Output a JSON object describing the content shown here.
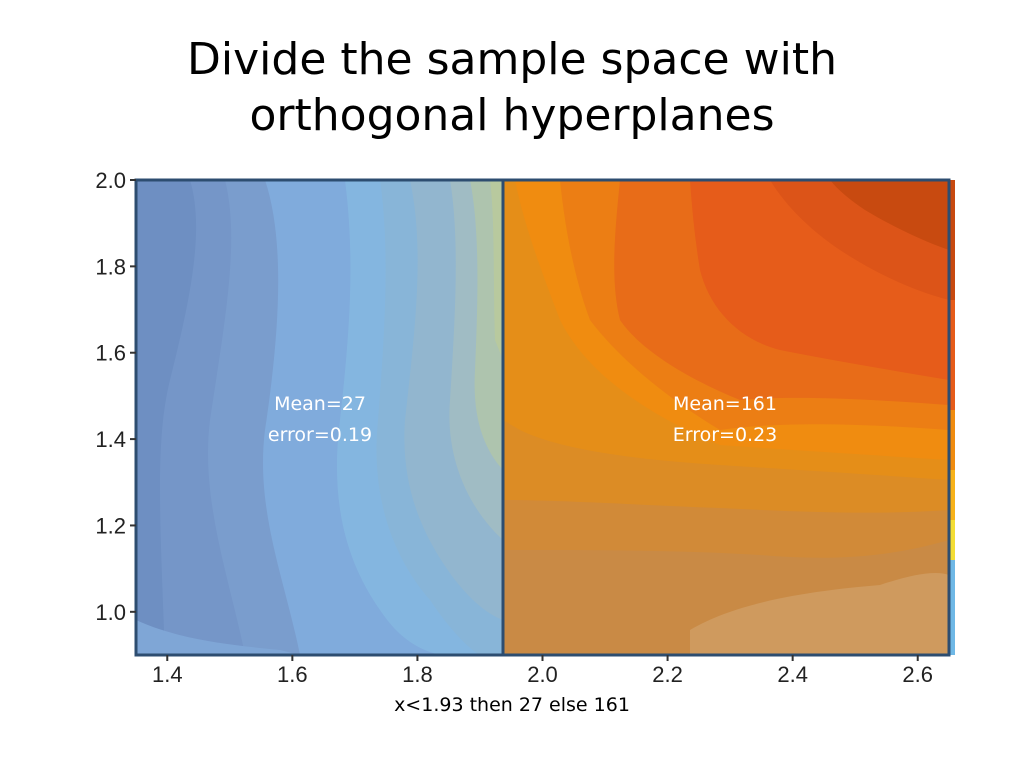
{
  "slide": {
    "title_line1": "Divide the sample space with",
    "title_line2": "orthogonal hyperplanes",
    "caption": "x<1.93 then 27 else 161"
  },
  "chart_data": {
    "type": "heatmap",
    "xlim": [
      1.35,
      2.65
    ],
    "ylim": [
      0.9,
      2.0
    ],
    "x_ticks": [
      1.4,
      1.6,
      1.8,
      2.0,
      2.2,
      2.4,
      2.6
    ],
    "x_tick_labels": [
      "1.4",
      "1.6",
      "1.8",
      "2.0",
      "2.2",
      "2.4",
      "2.6"
    ],
    "y_ticks": [
      1.0,
      1.2,
      1.4,
      1.6,
      1.8,
      2.0
    ],
    "y_tick_labels": [
      "1.0",
      "1.2",
      "1.4",
      "1.6",
      "1.8",
      "2.0"
    ],
    "split": {
      "axis": "x",
      "value": 1.93
    },
    "regions": [
      {
        "x_range": [
          1.35,
          1.93
        ],
        "mean_label": "Mean=27",
        "error_label": "error=0.19",
        "mean": 27,
        "error": 0.19,
        "color": "#7ba3d4"
      },
      {
        "x_range": [
          1.93,
          2.65
        ],
        "mean_label": "Mean=161",
        "error_label": "Error=0.23",
        "mean": 161,
        "error": 0.23,
        "color": "#f07a12"
      }
    ],
    "grid": false,
    "colors": {
      "blue_dark": "#6e8fc2",
      "blue_light": "#84b6e0",
      "teal": "#a6bfb8",
      "green": "#b8c99e",
      "orange": "#f08c10",
      "orange_red": "#e8581c",
      "red": "#c84a10",
      "brown": "#c98a45",
      "border": "#2d4d70"
    }
  }
}
